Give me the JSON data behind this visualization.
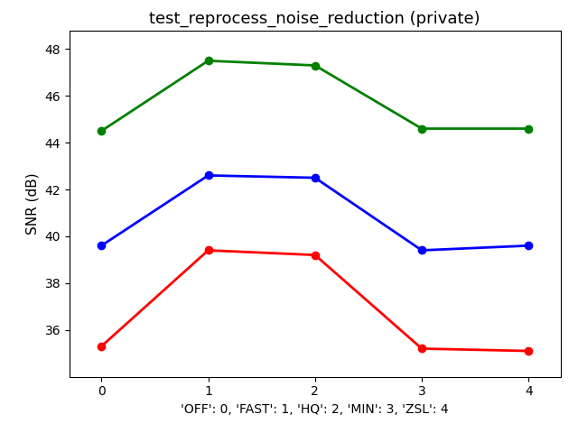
{
  "title": "test_reprocess_noise_reduction (private)",
  "xlabel": "'OFF': 0, 'FAST': 1, 'HQ': 2, 'MIN': 3, 'ZSL': 4",
  "ylabel": "SNR (dB)",
  "x": [
    0,
    1,
    2,
    3,
    4
  ],
  "series": [
    {
      "color": "green",
      "values": [
        44.5,
        47.5,
        47.3,
        44.6,
        44.6
      ]
    },
    {
      "color": "blue",
      "values": [
        39.6,
        42.6,
        42.5,
        39.4,
        39.6
      ]
    },
    {
      "color": "red",
      "values": [
        35.3,
        39.4,
        39.2,
        35.2,
        35.1
      ]
    }
  ],
  "ylim": [
    34.0,
    48.8
  ],
  "yticks": [
    36,
    38,
    40,
    42,
    44,
    46,
    48
  ],
  "xticks": [
    0,
    1,
    2,
    3,
    4
  ],
  "marker": "o",
  "linewidth": 2,
  "markersize": 6,
  "title_fontsize": 13,
  "label_fontsize": 11,
  "tick_fontsize": 10,
  "xlabel_fontsize": 10,
  "bg_color": "#ffffff"
}
